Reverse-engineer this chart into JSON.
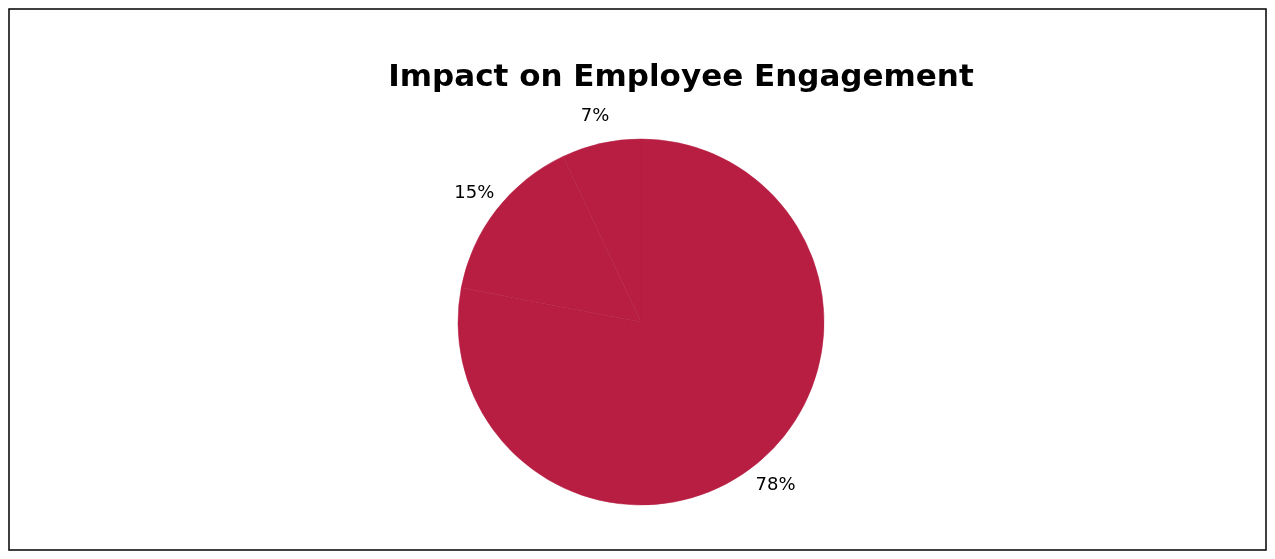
{
  "chart_data": {
    "type": "pie",
    "title": "Impact on Employee Engagement",
    "categories": [
      null,
      null,
      null
    ],
    "values": [
      78,
      15,
      7
    ],
    "colors": [
      "#b71e42",
      "#b71e42",
      "#b71e42"
    ],
    "value_labels": [
      "78%",
      "15%",
      "7%"
    ]
  }
}
